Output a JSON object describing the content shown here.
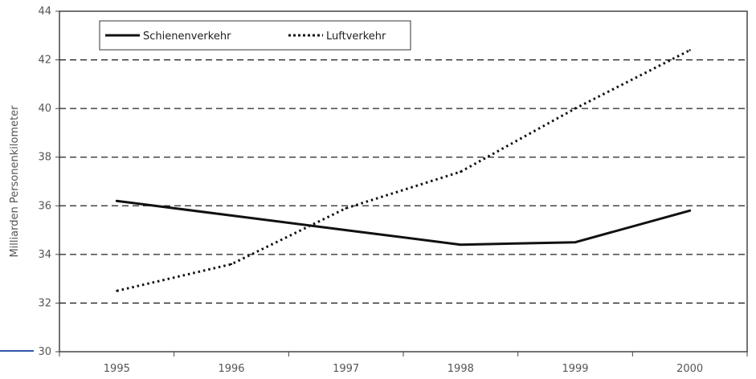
{
  "chart_data": {
    "type": "line",
    "title": "",
    "xlabel": "",
    "ylabel": "Milliarden Personenkilometer",
    "categories": [
      "1995",
      "1996",
      "1997",
      "1998",
      "1999",
      "2000"
    ],
    "ylim": [
      30,
      44
    ],
    "yticks": [
      30,
      32,
      34,
      36,
      38,
      40,
      42,
      44
    ],
    "grid": "horizontal dashed",
    "legend_position": "top-left",
    "series": [
      {
        "name": "Schienenverkehr",
        "style": "solid",
        "color": "#111111",
        "values": [
          36.2,
          35.6,
          35.0,
          34.4,
          34.5,
          35.8
        ]
      },
      {
        "name": "Luftverkehr",
        "style": "dotted",
        "color": "#111111",
        "values": [
          32.5,
          33.6,
          35.9,
          37.4,
          40.0,
          42.4
        ]
      }
    ]
  }
}
